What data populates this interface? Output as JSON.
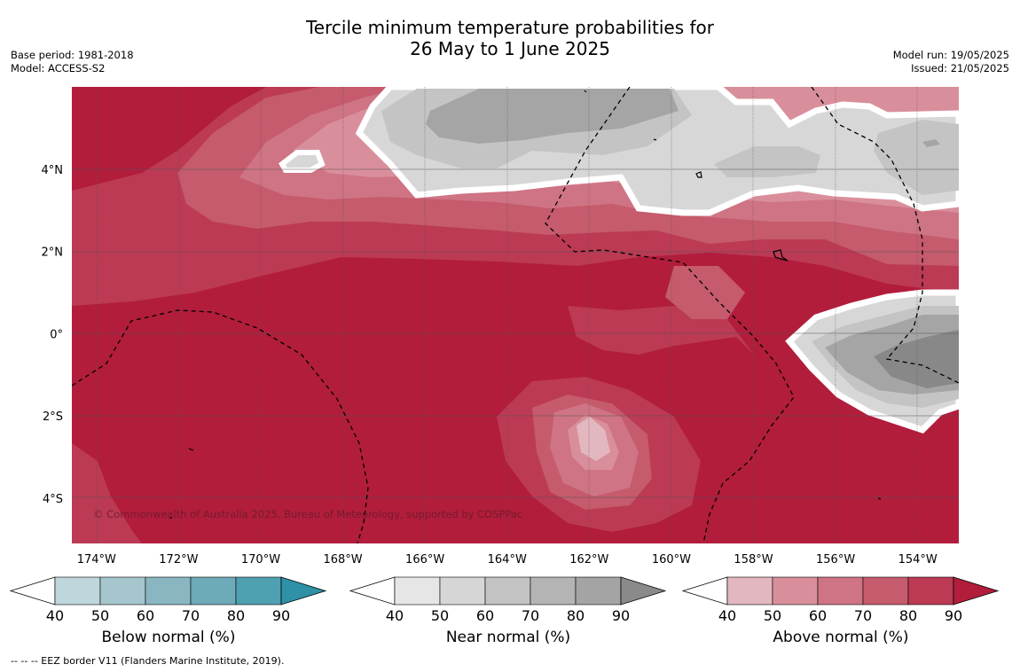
{
  "title": {
    "line1": "Tercile minimum temperature probabilities for",
    "line2": "26 May to 1 June 2025"
  },
  "meta": {
    "base_period": "Base period: 1981-2018",
    "model": "Model: ACCESS-S2",
    "model_run": "Model run: 19/05/2025",
    "issued": "Issued: 21/05/2025"
  },
  "map": {
    "attribution": "© Commonwealth of Australia 2025, Bureau of Meteorology, supported by COSPPac",
    "lon_labels": [
      "174°W",
      "172°W",
      "170°W",
      "168°W",
      "166°W",
      "164°W",
      "162°W",
      "160°W",
      "158°W",
      "156°W",
      "154°W"
    ],
    "lat_labels": [
      "4°N",
      "2°N",
      "0°",
      "2°S",
      "4°S"
    ],
    "lon_values": [
      -174,
      -172,
      -170,
      -168,
      -166,
      -164,
      -162,
      -160,
      -158,
      -156,
      -154
    ],
    "lat_values": [
      4,
      2,
      0,
      -2,
      -4
    ],
    "extent": {
      "lon_min": -174.6,
      "lon_max": -153.0,
      "lat_min": -5.1,
      "lat_max": 6.0
    }
  },
  "colorbars": [
    {
      "label": "Below normal (%)",
      "ticks": [
        "40",
        "50",
        "60",
        "70",
        "80",
        "90"
      ],
      "colors": [
        "#bed6dc",
        "#a6c6cd",
        "#8ab6c2",
        "#6eaab8",
        "#4fa0b0",
        "#2e91a5"
      ]
    },
    {
      "label": "Near normal (%)",
      "ticks": [
        "40",
        "50",
        "60",
        "70",
        "80",
        "90"
      ],
      "colors": [
        "#e6e6e6",
        "#d6d6d6",
        "#c3c3c3",
        "#b4b4b4",
        "#a4a4a4",
        "#8a8a8a"
      ]
    },
    {
      "label": "Above normal (%)",
      "ticks": [
        "40",
        "50",
        "60",
        "70",
        "80",
        "90"
      ],
      "colors": [
        "#e3b7bf",
        "#d98f9b",
        "#cf7484",
        "#c55b6c",
        "#bc3a54",
        "#b21d3c"
      ]
    }
  ],
  "footnote": "-- -- -- EEZ border V11 (Flanders Marine Institute, 2019).",
  "colors": {
    "above_max": "#b21d3c",
    "above_80": "#bc3a54",
    "above_70": "#c55b6c",
    "above_60": "#cf7484",
    "above_50": "#d98f9b",
    "near_40": "#d7d7d7",
    "near_50": "#c4c4c4",
    "near_60": "#a5a5a5",
    "near_70": "#888888"
  }
}
